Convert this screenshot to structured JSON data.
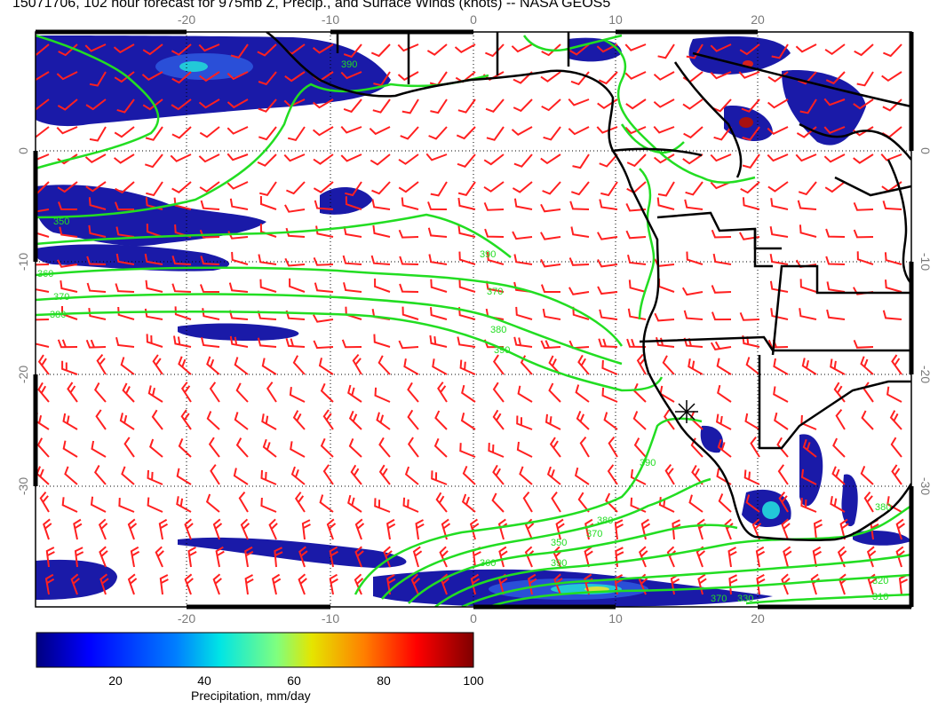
{
  "title": "15071706, 102 hour forecast for 975mb Z, Precip., and Surface Winds (knots) -- NASA GEOS5",
  "map": {
    "lon_range": [
      -30,
      30
    ],
    "lat_range": [
      -40,
      10
    ],
    "x_ticks_top": [
      "-20",
      "-10",
      "0",
      "10",
      "20"
    ],
    "x_ticks_bottom": [
      "-20",
      "-10",
      "0",
      "10",
      "20"
    ],
    "y_ticks_left": [
      "0",
      "-10",
      "-20",
      "-30"
    ],
    "y_ticks_right": [
      "0",
      "-10",
      "-20",
      "-30"
    ],
    "grid": true,
    "contour_color": "#22dd22",
    "coastline_color": "#000000",
    "wind_barb_color": "#ff2020",
    "contour_labels": [
      "350",
      "360",
      "370",
      "380",
      "390",
      "370",
      "380",
      "390",
      "390",
      "380",
      "370",
      "350",
      "390",
      "360",
      "370",
      "330",
      "380",
      "320",
      "310",
      "390"
    ]
  },
  "colorbar": {
    "label": "Precipitation, mm/day",
    "ticks": [
      "20",
      "40",
      "60",
      "80",
      "100"
    ],
    "range": [
      0,
      100
    ],
    "colors": [
      "#00007f",
      "#0000ff",
      "#007fff",
      "#00e5e5",
      "#7fff7f",
      "#e5e500",
      "#ff7f00",
      "#ff0000",
      "#7f0000"
    ]
  }
}
